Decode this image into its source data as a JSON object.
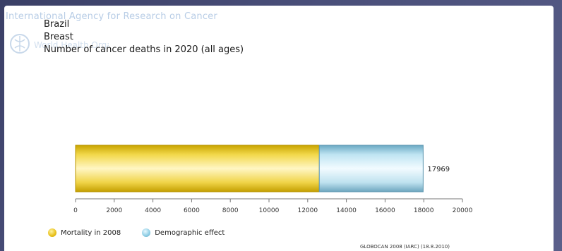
{
  "header": {
    "org_watermark": "International Agency for Research on Cancer",
    "who_watermark": "World Health Organization"
  },
  "titles": {
    "country": "Brazil",
    "cancer": "Breast",
    "metric": "Number of cancer deaths in 2020 (all ages)"
  },
  "source": "GLOBOCAN 2008 (IARC) (18.8.2010)",
  "colors": {
    "mortality": "#e8c01a",
    "demographic": "#a8d8ea"
  },
  "chart_data": {
    "type": "bar",
    "orientation": "horizontal",
    "stacked": true,
    "categories": [
      "Brazil"
    ],
    "series": [
      {
        "name": "Mortality in 2008",
        "values": [
          12600
        ]
      },
      {
        "name": "Demographic effect",
        "values": [
          5369
        ]
      }
    ],
    "total_label": "17969",
    "xlim": [
      0,
      20000
    ],
    "xticks": [
      "0",
      "2000",
      "4000",
      "6000",
      "8000",
      "10000",
      "12000",
      "14000",
      "16000",
      "18000",
      "20000"
    ],
    "grid": false,
    "legend_position": "bottom-left"
  }
}
